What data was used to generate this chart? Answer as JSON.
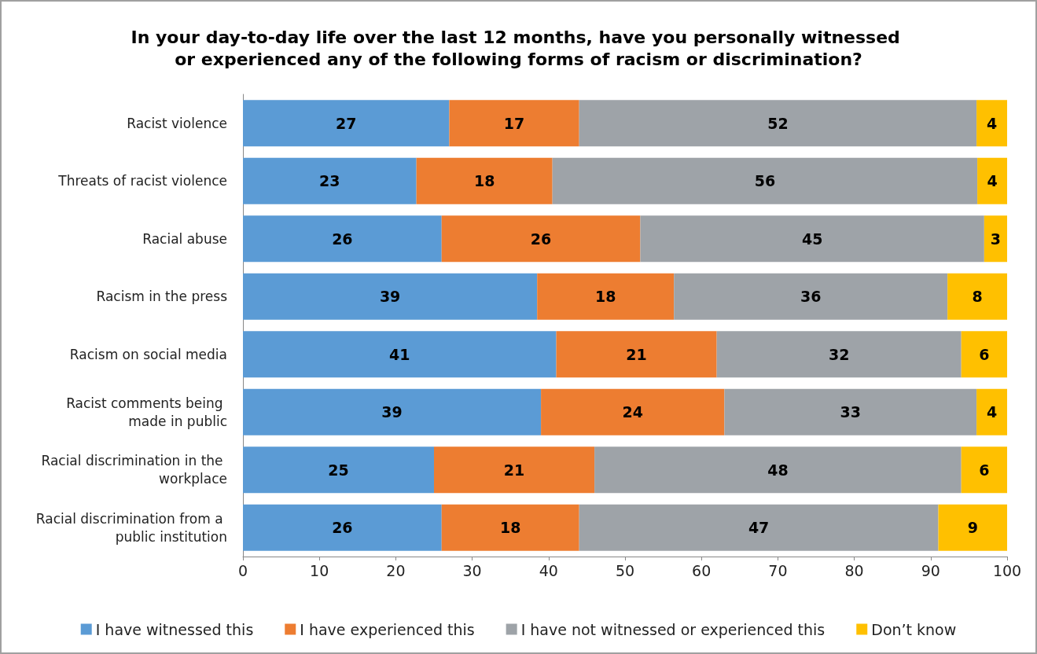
{
  "chart_data": {
    "type": "bar",
    "orientation": "horizontal",
    "stacked": true,
    "title": "In your day-to-day life over the last 12 months, have you personally witnessed or experienced any of the following forms of racism or discrimination?",
    "categories": [
      "Racist violence",
      "Threats of racist violence",
      "Racial abuse",
      "Racism in the press",
      "Racism on social media",
      "Racist comments being made in public",
      "Racial discrimination in the workplace",
      "Racial discrimination from a public institution"
    ],
    "series": [
      {
        "name": "I have witnessed this",
        "color": "#5b9bd5",
        "values": [
          27,
          22.7,
          26,
          38.5,
          41,
          39,
          25,
          26
        ],
        "value_labels": [
          "27",
          "23",
          "26",
          "39",
          "41",
          "39",
          "25",
          "26"
        ]
      },
      {
        "name": "I have experienced this",
        "color": "#ed7d31",
        "values": [
          17,
          17.8,
          26,
          17.9,
          21,
          24,
          21,
          18
        ],
        "value_labels": [
          "17",
          "18",
          "26",
          "18",
          "21",
          "24",
          "21",
          "18"
        ]
      },
      {
        "name": "I have not witnessed or experienced this",
        "color": "#9ea3a8",
        "values": [
          52,
          55.6,
          45,
          35.8,
          32,
          33,
          48,
          47
        ],
        "value_labels": [
          "52",
          "56",
          "45",
          "36",
          "32",
          "33",
          "48",
          "47"
        ]
      },
      {
        "name": "Don’t know",
        "color": "#ffc000",
        "values": [
          4,
          3.9,
          3,
          7.8,
          6,
          4,
          6,
          9
        ],
        "value_labels": [
          "4",
          "4",
          "3",
          "8",
          "6",
          "4",
          "6",
          "9"
        ]
      }
    ],
    "xlim": [
      0,
      100
    ],
    "xticks": [
      0,
      10,
      20,
      30,
      40,
      50,
      60,
      70,
      80,
      90,
      100
    ],
    "grid": false,
    "legend": "bottom"
  }
}
